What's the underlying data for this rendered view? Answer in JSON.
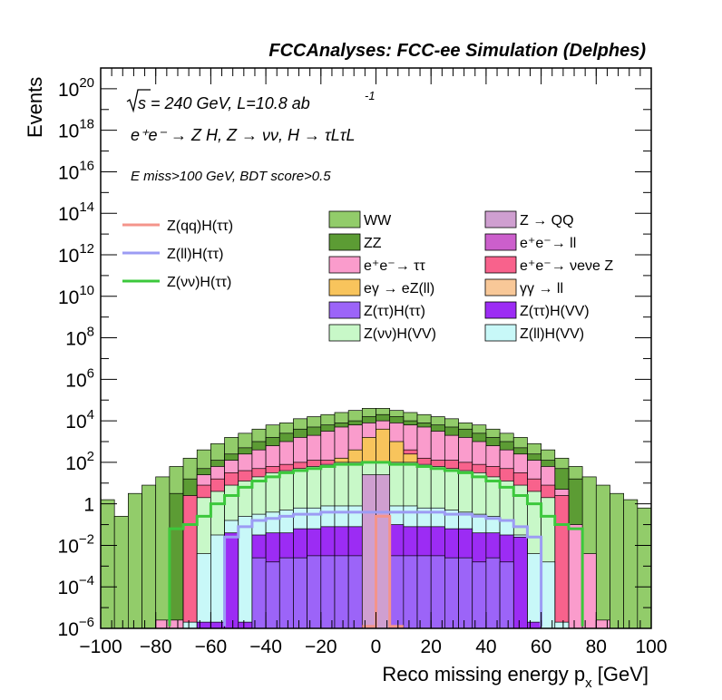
{
  "chart_data": {
    "type": "area",
    "title": "FCCAnalyses: FCC-ee Simulation (Delphes)",
    "xlabel": "Reco missing energy p",
    "xlabel_sub": "x",
    "xlabel_unit": "[GeV]",
    "ylabel": "Events",
    "xlim": [
      -100,
      100
    ],
    "ylim_log10": [
      -6,
      21
    ],
    "yscale": "log",
    "x_ticks": [
      -100,
      -80,
      -60,
      -40,
      -20,
      0,
      20,
      40,
      60,
      80,
      100
    ],
    "y_tick_exponents": [
      -6,
      -4,
      -2,
      0,
      2,
      4,
      6,
      8,
      10,
      12,
      14,
      16,
      18,
      20
    ],
    "annotations": {
      "sqrt_s": "s = 240 GeV, L=10.8 ab",
      "lumi_exp": "-1",
      "process": "e⁺e⁻ → Z H, Z → νν, H → τLτL",
      "selection": "E miss>100 GeV, BDT score>0.5"
    },
    "legend_lines": [
      {
        "name": "Z(qq)H(ττ)",
        "color": "#f4948b"
      },
      {
        "name": "Z(ll)H(ττ)",
        "color": "#9c9cf4"
      },
      {
        "name": "Z(νν)H(ττ)",
        "color": "#3cc83c"
      }
    ],
    "legend_stack": [
      {
        "name": "WW",
        "color": "#92cc6a"
      },
      {
        "name": "Z → QQ",
        "color": "#cf9fd0"
      },
      {
        "name": "ZZ",
        "color": "#5c9c34"
      },
      {
        "name": "e⁺e⁻→ ll",
        "color": "#cc5fcc"
      },
      {
        "name": "e⁺e⁻→ ττ",
        "color": "#fa9ccc"
      },
      {
        "name": "e⁺e⁻→ νeνe Z",
        "color": "#f8628c"
      },
      {
        "name": "eγ → eZ(ll)",
        "color": "#f8c45c"
      },
      {
        "name": "γγ → ll",
        "color": "#f8c898"
      },
      {
        "name": "Z(ττ)H(ττ)",
        "color": "#9c64f8"
      },
      {
        "name": "Z(ττ)H(VV)",
        "color": "#9c2cf4"
      },
      {
        "name": "Z(νν)H(VV)",
        "color": "#c8f8c8"
      },
      {
        "name": "Z(ll)H(VV)",
        "color": "#c8f8f8"
      }
    ],
    "bin_width": 5,
    "stack_log10_envelopes": [
      {
        "name": "WW",
        "color": "#92cc6a",
        "x": [
          -100,
          -95,
          -90,
          -85,
          -80,
          -75,
          -70,
          -65,
          -60,
          -55,
          -50,
          -45,
          -40,
          -35,
          -30,
          -25,
          -20,
          -15,
          -10,
          -5,
          0,
          5,
          10,
          15,
          20,
          25,
          30,
          35,
          40,
          45,
          50,
          55,
          60,
          65,
          70,
          75,
          80,
          85,
          90,
          95
        ],
        "log10": [
          0.2,
          -0.6,
          0.5,
          0.9,
          1.3,
          1.8,
          2.2,
          2.6,
          2.9,
          3.2,
          3.4,
          3.6,
          3.8,
          3.9,
          4.1,
          4.2,
          4.3,
          4.4,
          4.5,
          4.6,
          4.6,
          4.5,
          4.4,
          4.3,
          4.2,
          4.1,
          3.9,
          3.8,
          3.6,
          3.4,
          3.2,
          2.9,
          2.6,
          2.2,
          1.8,
          1.3,
          0.9,
          0.5,
          0.2,
          -0.2
        ]
      },
      {
        "name": "ZZ",
        "color": "#5c9c34",
        "x": [
          -75,
          -70,
          -65,
          -60,
          -55,
          -50,
          -45,
          -40,
          -35,
          -30,
          -25,
          -20,
          -15,
          -10,
          -5,
          0,
          5,
          10,
          15,
          20,
          25,
          30,
          35,
          40,
          45,
          50,
          55,
          60,
          65,
          70
        ],
        "log10": [
          0.5,
          1.2,
          1.7,
          2.1,
          2.4,
          2.7,
          3.0,
          3.2,
          3.4,
          3.6,
          3.7,
          3.8,
          3.9,
          4.0,
          4.2,
          4.3,
          4.2,
          4.0,
          3.9,
          3.8,
          3.7,
          3.6,
          3.4,
          3.2,
          3.0,
          2.7,
          2.4,
          2.1,
          1.7,
          1.2
        ]
      },
      {
        "name": "e⁺e⁻→ ττ",
        "color": "#fa9ccc",
        "x": [
          -80,
          -75,
          -70,
          -65,
          -60,
          -55,
          -50,
          -45,
          -40,
          -35,
          -30,
          -25,
          -20,
          -15,
          -10,
          -5,
          0,
          5,
          10,
          15,
          20,
          25,
          30,
          35,
          40,
          45,
          50,
          55,
          60,
          65,
          70,
          75,
          80
        ],
        "log10": [
          -5.6,
          -5.6,
          0.2,
          1.4,
          1.8,
          2.1,
          2.4,
          2.6,
          2.8,
          3.0,
          3.2,
          3.3,
          3.5,
          3.7,
          3.8,
          3.9,
          4.0,
          3.9,
          3.8,
          3.7,
          3.5,
          3.3,
          3.2,
          3.0,
          2.8,
          2.6,
          2.4,
          2.1,
          1.8,
          0.7,
          -1.0,
          -2.4,
          -5.6
        ]
      },
      {
        "name": "e⁺e⁻→ νeνe Z",
        "color": "#f8628c",
        "x": [
          -70,
          -65,
          -60,
          -55,
          -50,
          -45,
          -40,
          -35,
          -30,
          -25,
          -20,
          -15,
          -10,
          -5,
          0,
          5,
          10,
          15,
          20,
          25,
          30,
          35,
          40,
          45,
          50,
          55,
          60,
          65
        ],
        "log10": [
          0.4,
          0.9,
          1.2,
          1.5,
          1.6,
          1.7,
          1.8,
          1.9,
          2.0,
          2.1,
          2.1,
          2.2,
          2.5,
          2.9,
          3.0,
          2.9,
          2.6,
          2.2,
          2.1,
          2.1,
          2.0,
          1.9,
          1.8,
          1.7,
          1.5,
          1.2,
          0.9,
          0.4
        ]
      },
      {
        "name": "eγ → eZ(ll)",
        "color": "#f8c45c",
        "x": [
          -15,
          -10,
          -5,
          0,
          5,
          10
        ],
        "log10": [
          2.2,
          2.6,
          3.2,
          3.6,
          3.0,
          2.4
        ]
      },
      {
        "name": "Z(νν)H(VV)",
        "color": "#c8f8c8",
        "x": [
          -65,
          -60,
          -55,
          -50,
          -45,
          -40,
          -35,
          -30,
          -25,
          -20,
          -15,
          -10,
          -5,
          0,
          5,
          10,
          15,
          20,
          25,
          30,
          35,
          40,
          45,
          50,
          55,
          60
        ],
        "log10": [
          0.3,
          0.6,
          0.9,
          1.1,
          1.3,
          1.5,
          1.6,
          1.7,
          1.8,
          1.9,
          2.0,
          2.0,
          2.0,
          2.0,
          2.0,
          2.0,
          1.9,
          1.8,
          1.7,
          1.6,
          1.5,
          1.3,
          1.1,
          0.9,
          0.6,
          0.3
        ]
      },
      {
        "name": "Z(ll)H(VV)",
        "color": "#c8f8f8",
        "x": [
          -70,
          -65,
          -60,
          -55,
          -50,
          -45,
          -40,
          -35,
          -30,
          -25,
          -20,
          -15,
          -10,
          -5,
          0,
          5,
          10,
          15,
          20,
          25,
          30,
          35,
          40,
          45,
          50,
          55,
          60,
          65
        ],
        "log10": [
          -5.7,
          -2.4,
          -1.5,
          -0.8,
          -0.6,
          -0.5,
          -0.4,
          -0.3,
          -0.2,
          -0.2,
          -0.1,
          -0.1,
          -0.1,
          -0.1,
          -0.1,
          -0.1,
          -0.1,
          -0.2,
          -0.2,
          -0.3,
          -0.4,
          -0.5,
          -0.6,
          -0.8,
          -1.5,
          -2.4,
          -2.8,
          -5.7
        ]
      },
      {
        "name": "Z(ττ)H(VV)",
        "color": "#9c2cf4",
        "x": [
          -65,
          -60,
          -55,
          -50,
          -45,
          -40,
          -35,
          -30,
          -25,
          -20,
          -15,
          -10,
          -5,
          0,
          5,
          10,
          15,
          20,
          25,
          30,
          35,
          40,
          45,
          50,
          55
        ],
        "log10": [
          -5.7,
          -5.7,
          -1.4,
          -5.7,
          -1.5,
          -1.4,
          -1.4,
          -1.2,
          -1.2,
          -1.1,
          -1.1,
          -1.1,
          -1.0,
          -1.0,
          -1.0,
          -1.1,
          -1.1,
          -1.1,
          -1.2,
          -1.2,
          -1.4,
          -1.4,
          -1.5,
          -1.6,
          -5.7
        ]
      },
      {
        "name": "Z(ττ)H(ττ)",
        "color": "#9c64f8",
        "x": [
          -45,
          -40,
          -35,
          -30,
          -25,
          -20,
          -15,
          -10,
          -5,
          0,
          5,
          10,
          15,
          20,
          25,
          30,
          35,
          40,
          45
        ],
        "log10": [
          -2.6,
          -2.8,
          -2.6,
          -2.6,
          -2.5,
          -2.5,
          -2.5,
          -2.5,
          -2.5,
          -2.5,
          -2.5,
          -2.5,
          -2.5,
          -2.5,
          -2.6,
          -2.6,
          -2.8,
          -2.6,
          -2.8
        ]
      },
      {
        "name": "Z → QQ",
        "color": "#cf9fd0",
        "x": [
          -5,
          0
        ],
        "log10": [
          1.4,
          1.4
        ]
      }
    ],
    "line_series": [
      {
        "name": "Z(νν)H(ττ)",
        "color": "#3cc83c",
        "x": [
          -75,
          -70,
          -65,
          -60,
          -55,
          -50,
          -45,
          -40,
          -35,
          -30,
          -25,
          -20,
          -15,
          -10,
          -5,
          0,
          5,
          10,
          15,
          20,
          25,
          30,
          35,
          40,
          45,
          50,
          55,
          60,
          65,
          70
        ],
        "log10": [
          -1.2,
          -1.0,
          -0.6,
          0.0,
          0.4,
          0.8,
          1.1,
          1.3,
          1.5,
          1.6,
          1.7,
          1.8,
          1.9,
          1.9,
          2.0,
          2.0,
          1.9,
          1.9,
          1.8,
          1.7,
          1.6,
          1.5,
          1.3,
          1.1,
          0.8,
          0.4,
          0.0,
          -0.6,
          -1.0,
          -1.2
        ]
      },
      {
        "name": "Z(ll)H(ττ)",
        "color": "#9c9cf4",
        "x": [
          -55,
          -50,
          -45,
          -40,
          -35,
          -30,
          -25,
          -20,
          -15,
          -10,
          -5,
          0,
          5,
          10,
          15,
          20,
          25,
          30,
          35,
          40,
          45,
          50,
          55
        ],
        "log10": [
          -1.6,
          -1.1,
          -0.8,
          -0.7,
          -0.6,
          -0.5,
          -0.5,
          -0.4,
          -0.4,
          -0.4,
          -0.4,
          -0.4,
          -0.4,
          -0.4,
          -0.4,
          -0.4,
          -0.5,
          -0.5,
          -0.6,
          -0.7,
          -0.8,
          -1.1,
          -1.6
        ]
      },
      {
        "name": "Z(qq)H(ττ)",
        "color": "#f4948b",
        "x": [
          -5,
          0,
          5
        ],
        "log10": [
          -5.9,
          -0.6,
          -5.9
        ]
      }
    ]
  }
}
